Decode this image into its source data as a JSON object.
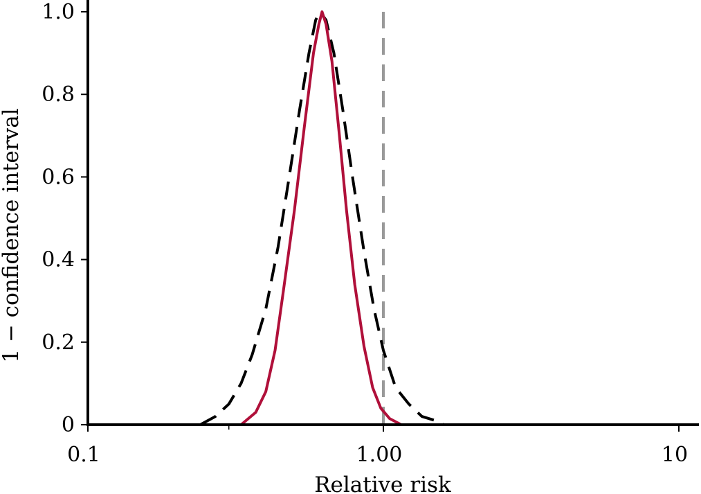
{
  "chart_data": {
    "type": "line",
    "title": "",
    "xlabel": "Relative risk",
    "ylabel": "1 − confidence interval",
    "xscale": "log",
    "xlim": [
      0.1,
      10
    ],
    "ylim": [
      0,
      1.0
    ],
    "x_ticks": [
      0.1,
      1.0,
      10
    ],
    "x_tick_labels": [
      "0.1",
      "1.00",
      "10"
    ],
    "y_ticks": [
      0,
      0.2,
      0.4,
      0.6,
      0.8,
      1.0
    ],
    "y_tick_labels": [
      "0",
      "0.2",
      "0.4",
      "0.6",
      "0.8",
      "1.0"
    ],
    "grid": false,
    "legend": "none",
    "reference_line": {
      "x": 1.0,
      "style": "dashed",
      "color": "#999999"
    },
    "series": [
      {
        "style": "dashed",
        "color": "#000000",
        "points": [
          [
            0.24,
            0.0
          ],
          [
            0.27,
            0.02
          ],
          [
            0.3,
            0.05
          ],
          [
            0.33,
            0.1
          ],
          [
            0.36,
            0.17
          ],
          [
            0.4,
            0.28
          ],
          [
            0.44,
            0.43
          ],
          [
            0.48,
            0.6
          ],
          [
            0.52,
            0.76
          ],
          [
            0.56,
            0.9
          ],
          [
            0.59,
            0.98
          ],
          [
            0.61,
            1.0
          ],
          [
            0.64,
            0.98
          ],
          [
            0.68,
            0.9
          ],
          [
            0.73,
            0.76
          ],
          [
            0.79,
            0.59
          ],
          [
            0.86,
            0.42
          ],
          [
            0.93,
            0.28
          ],
          [
            1.0,
            0.18
          ],
          [
            1.1,
            0.09
          ],
          [
            1.22,
            0.05
          ],
          [
            1.35,
            0.02
          ],
          [
            1.5,
            0.01
          ],
          [
            1.6,
            0.0
          ]
        ]
      },
      {
        "style": "solid",
        "color": "#b0103a",
        "points": [
          [
            0.33,
            0.0
          ],
          [
            0.37,
            0.03
          ],
          [
            0.4,
            0.08
          ],
          [
            0.43,
            0.18
          ],
          [
            0.46,
            0.33
          ],
          [
            0.5,
            0.52
          ],
          [
            0.54,
            0.72
          ],
          [
            0.58,
            0.9
          ],
          [
            0.605,
            0.97
          ],
          [
            0.62,
            1.0
          ],
          [
            0.64,
            0.97
          ],
          [
            0.67,
            0.88
          ],
          [
            0.71,
            0.7
          ],
          [
            0.75,
            0.52
          ],
          [
            0.8,
            0.34
          ],
          [
            0.86,
            0.19
          ],
          [
            0.92,
            0.09
          ],
          [
            0.98,
            0.04
          ],
          [
            1.05,
            0.015
          ],
          [
            1.15,
            0.0
          ]
        ]
      }
    ]
  }
}
